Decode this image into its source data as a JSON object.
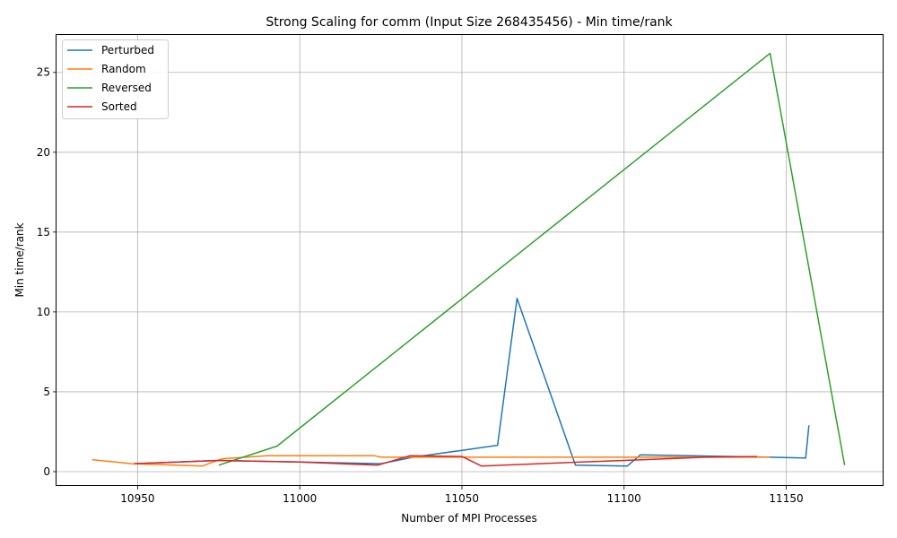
{
  "chart_data": {
    "type": "line",
    "title": "Strong Scaling for comm (Input Size 268435456) - Min time/rank",
    "xlabel": "Number of MPI Processes",
    "ylabel": "Min time/rank",
    "xlim": [
      10925,
      11180
    ],
    "ylim": [
      -0.9,
      27.4
    ],
    "xticks": [
      10950,
      11000,
      11050,
      11100,
      11150
    ],
    "yticks": [
      0,
      5,
      10,
      15,
      20,
      25
    ],
    "grid": true,
    "legend_position": "upper-left",
    "series": [
      {
        "name": "Perturbed",
        "color": "#1f77b4",
        "x": [
          10949,
          10975,
          11000,
          11025,
          11035,
          11061,
          11067,
          11085,
          11101,
          11105,
          11145,
          11156,
          11157
        ],
        "y": [
          0.5,
          0.7,
          0.6,
          0.5,
          0.9,
          1.65,
          10.85,
          0.4,
          0.35,
          1.05,
          0.9,
          0.85,
          2.9
        ]
      },
      {
        "name": "Random",
        "color": "#ff7f0e",
        "x": [
          10936,
          10948,
          10970,
          10976,
          10990,
          11023,
          11025,
          11050,
          11075,
          11100,
          11145
        ],
        "y": [
          0.75,
          0.5,
          0.35,
          0.8,
          1.0,
          1.0,
          0.9,
          0.9,
          0.9,
          0.9,
          0.9
        ]
      },
      {
        "name": "Reversed",
        "color": "#2ca02c",
        "x": [
          10975,
          10993,
          11145,
          11168
        ],
        "y": [
          0.4,
          1.6,
          26.2,
          0.4
        ]
      },
      {
        "name": "Sorted",
        "color": "#d62728",
        "x": [
          10949,
          10975,
          11000,
          11024,
          11034,
          11050,
          11056,
          11080,
          11100,
          11125,
          11141
        ],
        "y": [
          0.5,
          0.7,
          0.6,
          0.4,
          1.0,
          0.95,
          0.35,
          0.55,
          0.7,
          0.9,
          0.95
        ]
      }
    ]
  }
}
